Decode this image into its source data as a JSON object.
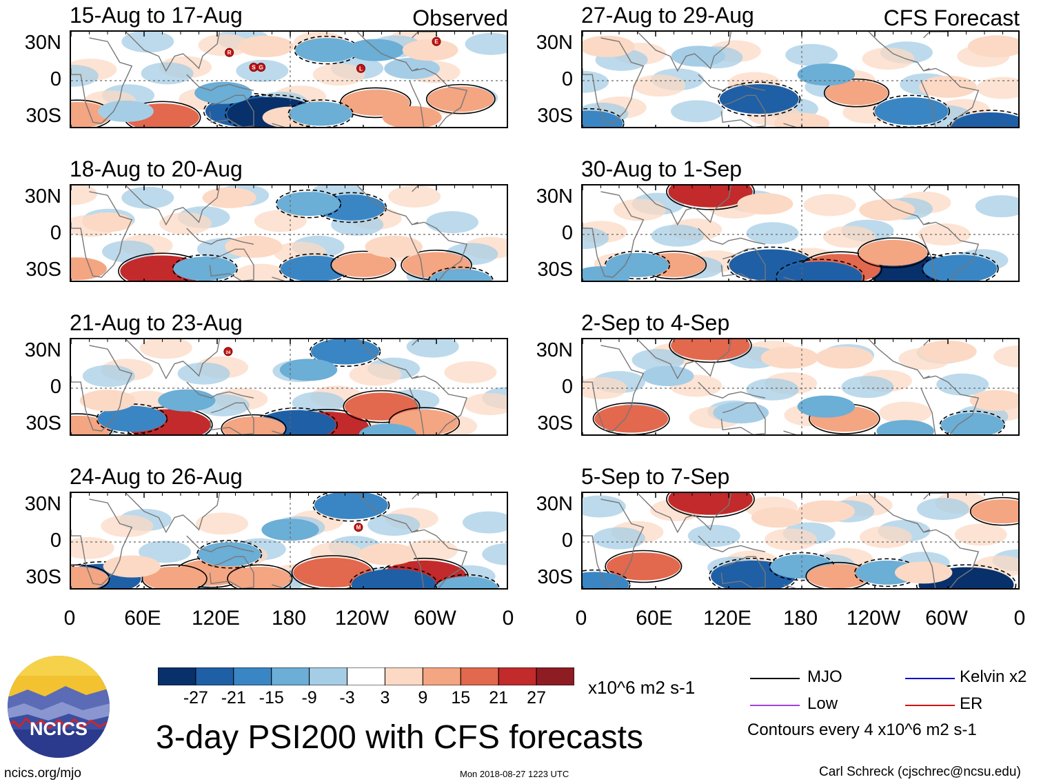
{
  "chart_data": {
    "type": "heatmap",
    "title": "3-day PSI200 with CFS forecasts",
    "units": "x10^6 m2 s-1",
    "x_tick_labels": [
      "0",
      "60E",
      "120E",
      "180",
      "120W",
      "60W",
      "0"
    ],
    "y_tick_labels": [
      "30N",
      "0",
      "30S"
    ],
    "colorbar": {
      "tick_labels": [
        "-27",
        "-21",
        "-15",
        "-9",
        "-3",
        "3",
        "9",
        "15",
        "21",
        "27"
      ],
      "colors": [
        "#08306b",
        "#1f5fa6",
        "#3a86c4",
        "#6baed6",
        "#a6cde6",
        "#deeaf4",
        "#ffffff",
        "#fcd9c4",
        "#f4a582",
        "#e2684e",
        "#c22a2b",
        "#8e1c23",
        "#5e0d19"
      ]
    },
    "panels": [
      {
        "title": "15-Aug to 17-Aug",
        "tag": "Observed",
        "column": "observed",
        "markers": [
          {
            "label": "R",
            "lon": 130,
            "lat": 23
          },
          {
            "label": "S",
            "lon": 150,
            "lat": 11
          },
          {
            "label": "G",
            "lon": 156,
            "lat": 11
          },
          {
            "label": "L",
            "lon": 238,
            "lat": 10
          },
          {
            "label": "E",
            "lon": 300,
            "lat": 32
          }
        ],
        "blobs": [
          {
            "lon": 145,
            "lat": -25,
            "v": -24
          },
          {
            "lon": 165,
            "lat": -27,
            "v": -27
          },
          {
            "lon": 75,
            "lat": -30,
            "v": 18
          },
          {
            "lon": 5,
            "lat": -28,
            "v": 15
          },
          {
            "lon": 250,
            "lat": -18,
            "v": 15
          },
          {
            "lon": 320,
            "lat": -15,
            "v": 14
          },
          {
            "lon": 280,
            "lat": -30,
            "v": 10
          },
          {
            "lon": 210,
            "lat": 25,
            "v": -12
          },
          {
            "lon": 250,
            "lat": 25,
            "v": -9
          },
          {
            "lon": 180,
            "lat": -30,
            "v": 8
          },
          {
            "lon": 205,
            "lat": -27,
            "v": -12
          },
          {
            "lon": 280,
            "lat": 10,
            "v": -8
          },
          {
            "lon": 125,
            "lat": -10,
            "v": -9
          },
          {
            "lon": 160,
            "lat": 28,
            "v": 8
          },
          {
            "lon": 295,
            "lat": 25,
            "v": 8
          },
          {
            "lon": 45,
            "lat": -25,
            "v": -8
          }
        ]
      },
      {
        "title": "27-Aug to 29-Aug",
        "tag": "CFS Forecast",
        "column": "forecast",
        "markers": [],
        "blobs": [
          {
            "lon": 145,
            "lat": -15,
            "v": -21
          },
          {
            "lon": 270,
            "lat": -25,
            "v": -18
          },
          {
            "lon": 335,
            "lat": -38,
            "v": -21
          },
          {
            "lon": 225,
            "lat": -10,
            "v": 12
          },
          {
            "lon": 5,
            "lat": -35,
            "v": -15
          },
          {
            "lon": 20,
            "lat": 28,
            "v": 8
          },
          {
            "lon": 200,
            "lat": 5,
            "v": -9
          },
          {
            "lon": 300,
            "lat": -5,
            "v": 9
          },
          {
            "lon": 180,
            "lat": -35,
            "v": 8
          },
          {
            "lon": 340,
            "lat": 28,
            "v": 9
          },
          {
            "lon": 95,
            "lat": 20,
            "v": -7
          }
        ]
      },
      {
        "title": "18-Aug to 20-Aug",
        "tag": "",
        "column": "observed",
        "markers": [],
        "blobs": [
          {
            "lon": 75,
            "lat": -30,
            "v": 24
          },
          {
            "lon": 230,
            "lat": 22,
            "v": -15
          },
          {
            "lon": 195,
            "lat": 25,
            "v": -12
          },
          {
            "lon": 5,
            "lat": -28,
            "v": 10
          },
          {
            "lon": 150,
            "lat": -10,
            "v": 9
          },
          {
            "lon": 200,
            "lat": -28,
            "v": -15
          },
          {
            "lon": 300,
            "lat": -25,
            "v": 15
          },
          {
            "lon": 240,
            "lat": -25,
            "v": 12
          },
          {
            "lon": 110,
            "lat": -28,
            "v": -12
          },
          {
            "lon": 265,
            "lat": -10,
            "v": 9
          },
          {
            "lon": 130,
            "lat": 30,
            "v": 7
          },
          {
            "lon": 30,
            "lat": 10,
            "v": 5
          },
          {
            "lon": 320,
            "lat": -38,
            "v": -12
          }
        ]
      },
      {
        "title": "30-Aug to 1-Sep",
        "tag": "",
        "column": "forecast",
        "markers": [],
        "blobs": [
          {
            "lon": 105,
            "lat": 35,
            "v": 24
          },
          {
            "lon": 155,
            "lat": -25,
            "v": -24
          },
          {
            "lon": 275,
            "lat": -32,
            "v": -30
          },
          {
            "lon": 212,
            "lat": -28,
            "v": 21
          },
          {
            "lon": 255,
            "lat": -15,
            "v": 15
          },
          {
            "lon": 310,
            "lat": -28,
            "v": -18
          },
          {
            "lon": 195,
            "lat": -35,
            "v": -24
          },
          {
            "lon": 75,
            "lat": -25,
            "v": 12
          },
          {
            "lon": 45,
            "lat": -25,
            "v": -12
          },
          {
            "lon": 15,
            "lat": -35,
            "v": -9
          },
          {
            "lon": 150,
            "lat": 25,
            "v": 8
          },
          {
            "lon": 250,
            "lat": 20,
            "v": 8
          }
        ]
      },
      {
        "title": "21-Aug to 23-Aug",
        "tag": "",
        "column": "observed",
        "markers": [
          {
            "label": "24",
            "lon": 129,
            "lat": 30
          }
        ],
        "blobs": [
          {
            "lon": 80,
            "lat": -30,
            "v": 24
          },
          {
            "lon": 210,
            "lat": -32,
            "v": 24
          },
          {
            "lon": 185,
            "lat": -30,
            "v": -21
          },
          {
            "lon": 255,
            "lat": -15,
            "v": 18
          },
          {
            "lon": 290,
            "lat": -28,
            "v": 15
          },
          {
            "lon": 5,
            "lat": -33,
            "v": 15
          },
          {
            "lon": 50,
            "lat": -25,
            "v": -15
          },
          {
            "lon": 225,
            "lat": 30,
            "v": -15
          },
          {
            "lon": 150,
            "lat": -33,
            "v": 12
          },
          {
            "lon": 95,
            "lat": -10,
            "v": -9
          },
          {
            "lon": 195,
            "lat": 15,
            "v": -9
          },
          {
            "lon": 260,
            "lat": -38,
            "v": -9
          },
          {
            "lon": 30,
            "lat": -10,
            "v": 8
          }
        ]
      },
      {
        "title": "2-Sep to 4-Sep",
        "tag": "",
        "column": "forecast",
        "markers": [],
        "blobs": [
          {
            "lon": 105,
            "lat": 35,
            "v": 21
          },
          {
            "lon": 40,
            "lat": -25,
            "v": 18
          },
          {
            "lon": 215,
            "lat": -25,
            "v": 15
          },
          {
            "lon": 170,
            "lat": 25,
            "v": 9
          },
          {
            "lon": 215,
            "lat": 25,
            "v": 9
          },
          {
            "lon": 300,
            "lat": 30,
            "v": 9
          },
          {
            "lon": 320,
            "lat": -30,
            "v": -12
          },
          {
            "lon": 200,
            "lat": -15,
            "v": -9
          },
          {
            "lon": 130,
            "lat": -20,
            "v": -8
          },
          {
            "lon": 265,
            "lat": -35,
            "v": -9
          },
          {
            "lon": 70,
            "lat": 10,
            "v": -6
          },
          {
            "lon": 340,
            "lat": -10,
            "v": 7
          }
        ]
      },
      {
        "title": "24-Aug to 26-Aug",
        "tag": "",
        "column": "observed",
        "markers": [
          {
            "label": "M",
            "lon": 236,
            "lat": 12
          }
        ],
        "blobs": [
          {
            "lon": 215,
            "lat": -25,
            "v": 21
          },
          {
            "lon": 290,
            "lat": -28,
            "v": 24
          },
          {
            "lon": 115,
            "lat": -25,
            "v": 15
          },
          {
            "lon": 25,
            "lat": -30,
            "v": -21
          },
          {
            "lon": 265,
            "lat": -35,
            "v": -24
          },
          {
            "lon": 230,
            "lat": 30,
            "v": -18
          },
          {
            "lon": 155,
            "lat": -30,
            "v": 12
          },
          {
            "lon": 130,
            "lat": -10,
            "v": -12
          },
          {
            "lon": 85,
            "lat": -30,
            "v": 12
          },
          {
            "lon": 5,
            "lat": -30,
            "v": 12
          },
          {
            "lon": 180,
            "lat": 10,
            "v": -9
          },
          {
            "lon": 50,
            "lat": -20,
            "v": 9
          },
          {
            "lon": 260,
            "lat": -10,
            "v": 9
          },
          {
            "lon": 325,
            "lat": -38,
            "v": -12
          }
        ]
      },
      {
        "title": "5-Sep to 7-Sep",
        "tag": "",
        "column": "forecast",
        "markers": [],
        "blobs": [
          {
            "lon": 105,
            "lat": 35,
            "v": 24
          },
          {
            "lon": 50,
            "lat": -20,
            "v": 18
          },
          {
            "lon": 140,
            "lat": -28,
            "v": -24
          },
          {
            "lon": 315,
            "lat": -35,
            "v": -30
          },
          {
            "lon": 180,
            "lat": -20,
            "v": -12
          },
          {
            "lon": 210,
            "lat": -28,
            "v": 12
          },
          {
            "lon": 10,
            "lat": -35,
            "v": -15
          },
          {
            "lon": 250,
            "lat": -25,
            "v": -12
          },
          {
            "lon": 280,
            "lat": -25,
            "v": 9
          },
          {
            "lon": 200,
            "lat": 25,
            "v": 9
          },
          {
            "lon": 345,
            "lat": 25,
            "v": 12
          },
          {
            "lon": 160,
            "lat": 20,
            "v": 6
          }
        ]
      }
    ]
  },
  "legend": {
    "items": [
      {
        "label": "MJO",
        "color": "#000000"
      },
      {
        "label": "Kelvin x2",
        "color": "#0000cc"
      },
      {
        "label": "Low",
        "color": "#a040e0"
      },
      {
        "label": "ER",
        "color": "#d01010"
      }
    ],
    "contour_note": "Contours every 4 x10^6 m2 s-1"
  },
  "footer": {
    "website": "ncics.org/mjo",
    "timestamp": "Mon 2018-08-27 1223 UTC",
    "author": "Carl Schreck (cjschrec@ncsu.edu)",
    "logo_text": "NCICS"
  }
}
